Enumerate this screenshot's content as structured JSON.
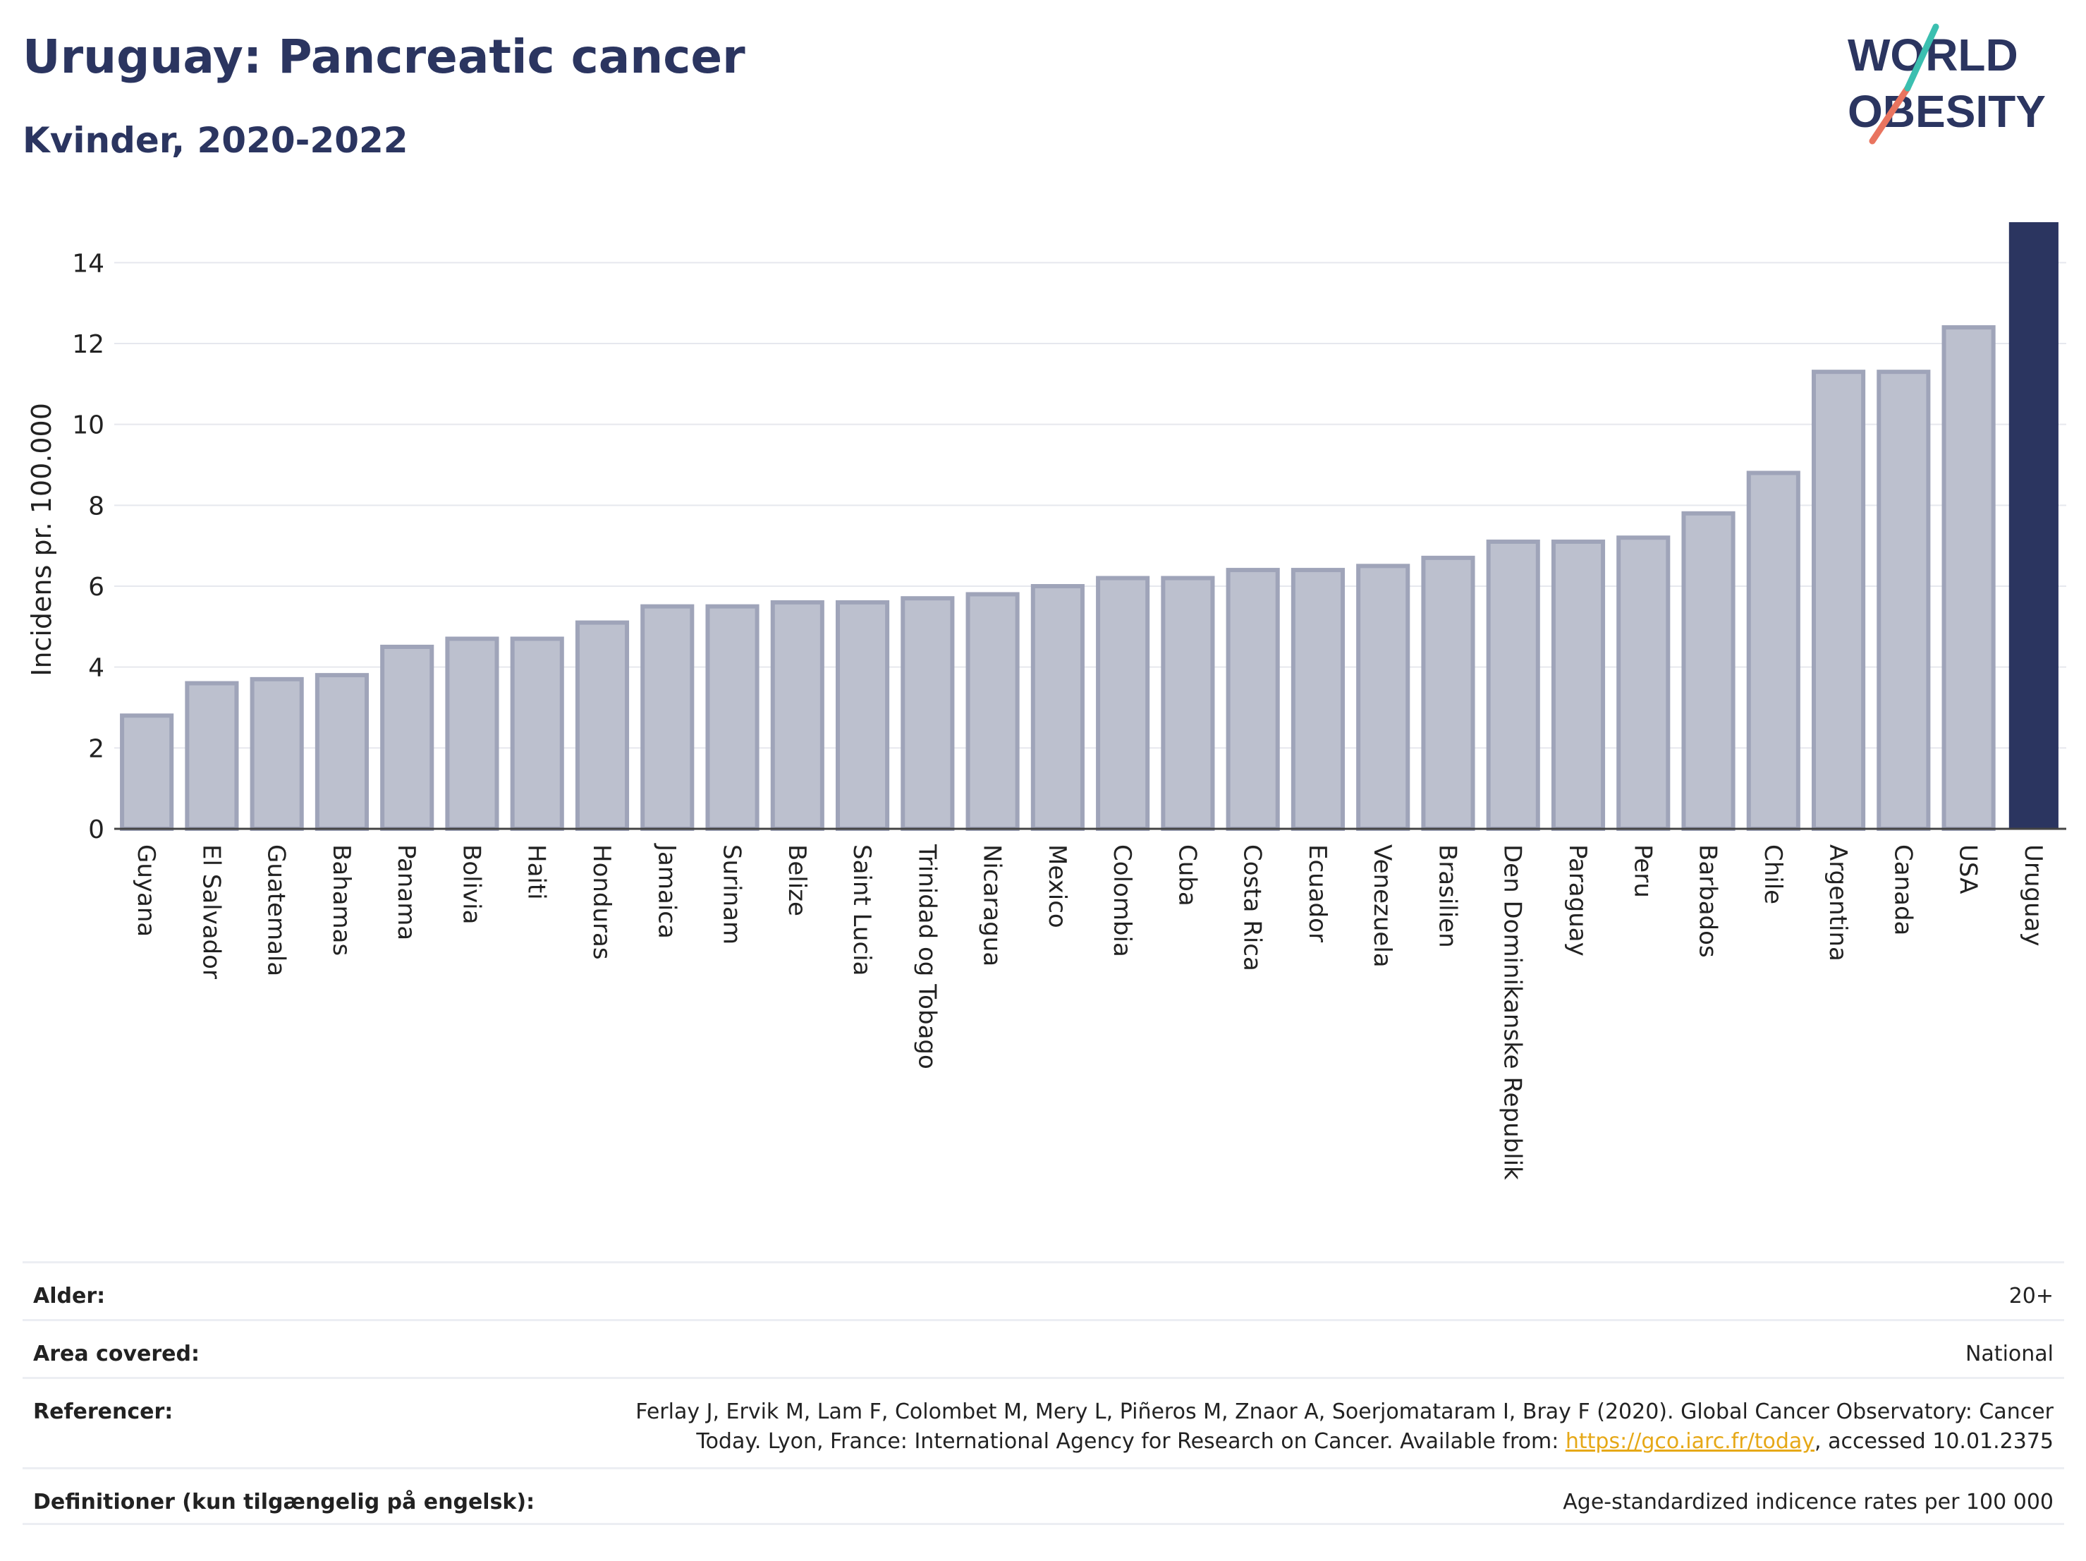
{
  "header": {
    "title": "Uruguay: Pancreatic cancer",
    "subtitle": "Kvinder, 2020-2022"
  },
  "logo": {
    "line1": "WORLD",
    "line2": "OBESITY"
  },
  "colors": {
    "highlight_bar": "#2b3560",
    "other_bar_fill": "#bcc0ce",
    "other_bar_stroke": "#9fa4b9",
    "grid": "#e6e8ee",
    "link": "#e6a817",
    "title": "#2b3560"
  },
  "chart_data": {
    "type": "bar",
    "ylabel": "Incidens pr. 100.000",
    "ylim": [
      0,
      15
    ],
    "yticks": [
      "0",
      "2",
      "4",
      "6",
      "8",
      "10",
      "12",
      "14"
    ],
    "grid": true,
    "highlight": "Uruguay",
    "categories": [
      "Guyana",
      "El Salvador",
      "Guatemala",
      "Bahamas",
      "Panama",
      "Bolivia",
      "Haiti",
      "Honduras",
      "Jamaica",
      "Surinam",
      "Belize",
      "Saint Lucia",
      "Trinidad og Tobago",
      "Nicaragua",
      "Mexico",
      "Colombia",
      "Cuba",
      "Costa Rica",
      "Ecuador",
      "Venezuela",
      "Brasilien",
      "Den Dominikanske Republik",
      "Paraguay",
      "Peru",
      "Barbados",
      "Chile",
      "Argentina",
      "Canada",
      "USA",
      "Uruguay"
    ],
    "values": [
      2.8,
      3.6,
      3.7,
      3.8,
      4.5,
      4.7,
      4.7,
      5.1,
      5.5,
      5.5,
      5.6,
      5.6,
      5.7,
      5.8,
      6.0,
      6.2,
      6.2,
      6.4,
      6.4,
      6.5,
      6.7,
      7.1,
      7.1,
      7.2,
      7.8,
      8.8,
      11.3,
      11.3,
      12.4,
      15.0
    ]
  },
  "meta": [
    {
      "label": "Alder:",
      "value": "20+"
    },
    {
      "label": "Area covered:",
      "value": "National"
    },
    {
      "label": "Referencer:",
      "value_pre": "Ferlay J, Ervik M, Lam F, Colombet M, Mery L, Piñeros M, Znaor A, Soerjomataram I, Bray F (2020). Global Cancer Observatory: Cancer Today. Lyon, France: International Agency for Research on Cancer. Available from: ",
      "link": "https://gco.iarc.fr/today",
      "value_post": ", accessed 10.01.2375"
    },
    {
      "label": "Definitioner (kun tilgængelig på engelsk):",
      "value": "Age-standardized indicence rates per 100 000"
    }
  ]
}
